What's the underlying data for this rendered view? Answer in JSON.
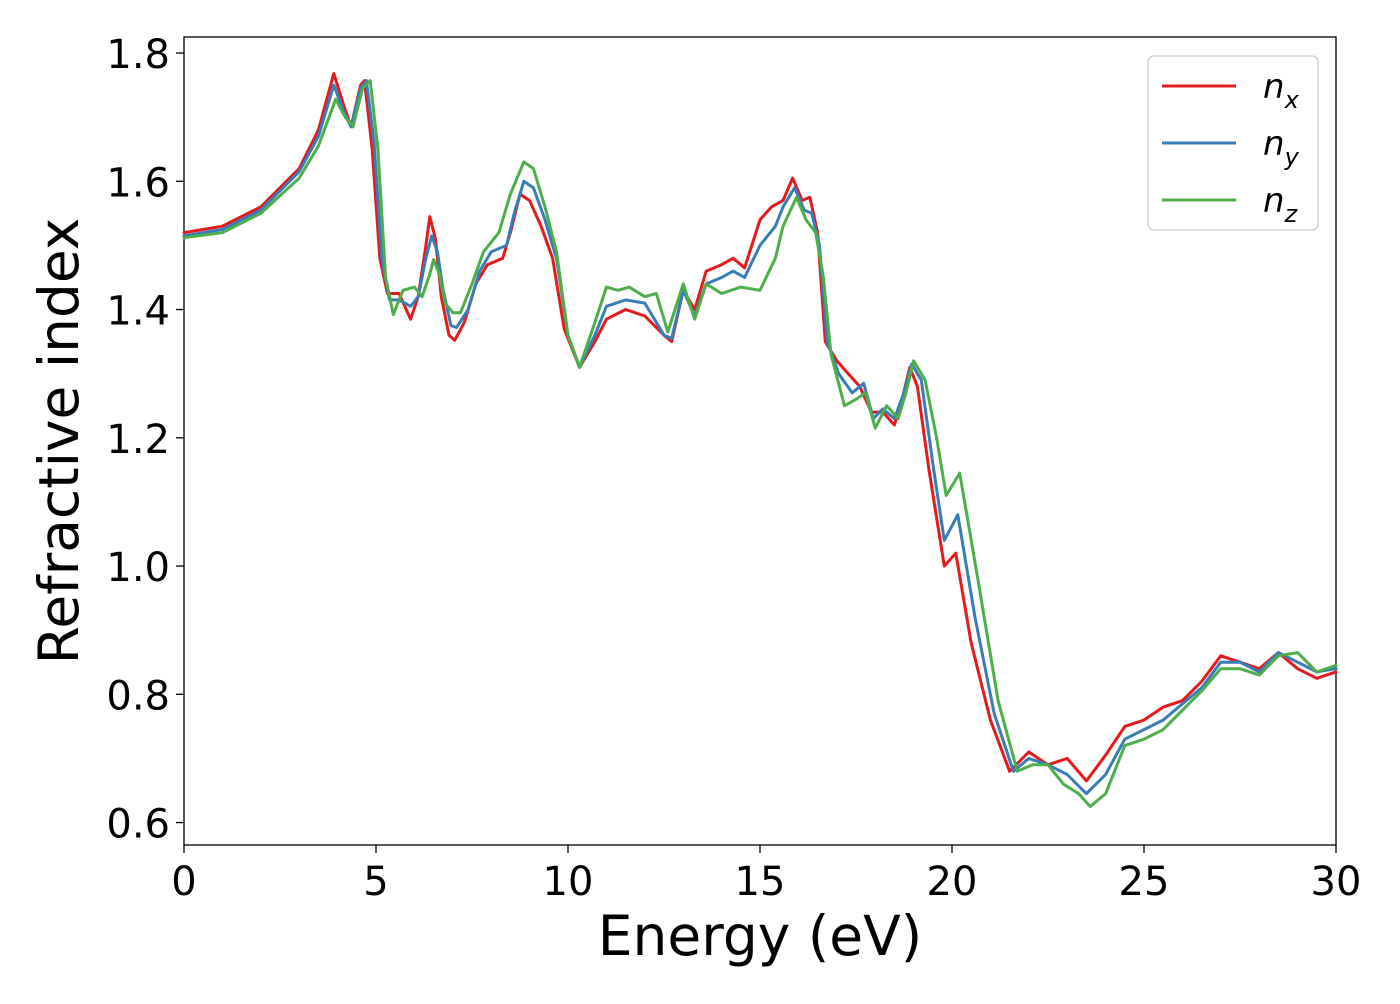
{
  "chart_data": {
    "type": "line",
    "title": "",
    "xlabel": "Energy (eV)",
    "ylabel": "Refractive index",
    "xlim": [
      0,
      30
    ],
    "ylim": [
      0.565,
      1.825
    ],
    "x_ticks": [
      0,
      5,
      10,
      15,
      20,
      25,
      30
    ],
    "x_tick_labels": [
      "0",
      "5",
      "10",
      "15",
      "20",
      "25",
      "30"
    ],
    "y_ticks": [
      0.6,
      0.8,
      1.0,
      1.2,
      1.4,
      1.6,
      1.8
    ],
    "y_tick_labels": [
      "0.6",
      "0.8",
      "1.0",
      "1.2",
      "1.4",
      "1.6",
      "1.8"
    ],
    "grid": false,
    "legend_position": "top-right",
    "series": [
      {
        "name": "n_x",
        "label_main": "n",
        "label_sub": "x",
        "color": "#e41a1c",
        "points": [
          [
            0,
            1.52
          ],
          [
            1,
            1.53
          ],
          [
            2,
            1.56
          ],
          [
            3,
            1.62
          ],
          [
            3.5,
            1.68
          ],
          [
            3.9,
            1.768
          ],
          [
            4.15,
            1.72
          ],
          [
            4.35,
            1.685
          ],
          [
            4.6,
            1.75
          ],
          [
            4.7,
            1.757
          ],
          [
            4.9,
            1.65
          ],
          [
            5.1,
            1.48
          ],
          [
            5.3,
            1.425
          ],
          [
            5.6,
            1.425
          ],
          [
            5.9,
            1.385
          ],
          [
            6.1,
            1.42
          ],
          [
            6.3,
            1.5
          ],
          [
            6.4,
            1.545
          ],
          [
            6.55,
            1.51
          ],
          [
            6.7,
            1.42
          ],
          [
            6.9,
            1.36
          ],
          [
            7.05,
            1.352
          ],
          [
            7.3,
            1.38
          ],
          [
            7.6,
            1.44
          ],
          [
            7.9,
            1.47
          ],
          [
            8.3,
            1.48
          ],
          [
            8.5,
            1.52
          ],
          [
            8.75,
            1.58
          ],
          [
            9.0,
            1.57
          ],
          [
            9.3,
            1.53
          ],
          [
            9.6,
            1.48
          ],
          [
            9.9,
            1.37
          ],
          [
            10.3,
            1.31
          ],
          [
            10.7,
            1.35
          ],
          [
            11,
            1.385
          ],
          [
            11.5,
            1.4
          ],
          [
            12,
            1.39
          ],
          [
            12.5,
            1.36
          ],
          [
            12.7,
            1.35
          ],
          [
            13,
            1.43
          ],
          [
            13.3,
            1.4
          ],
          [
            13.6,
            1.46
          ],
          [
            14,
            1.47
          ],
          [
            14.3,
            1.48
          ],
          [
            14.6,
            1.465
          ],
          [
            15,
            1.54
          ],
          [
            15.3,
            1.56
          ],
          [
            15.6,
            1.57
          ],
          [
            15.85,
            1.605
          ],
          [
            16.1,
            1.57
          ],
          [
            16.3,
            1.575
          ],
          [
            16.5,
            1.52
          ],
          [
            16.7,
            1.35
          ],
          [
            17,
            1.32
          ],
          [
            17.3,
            1.3
          ],
          [
            17.6,
            1.28
          ],
          [
            17.9,
            1.24
          ],
          [
            18.2,
            1.24
          ],
          [
            18.5,
            1.22
          ],
          [
            18.7,
            1.26
          ],
          [
            18.9,
            1.31
          ],
          [
            19.1,
            1.28
          ],
          [
            19.4,
            1.15
          ],
          [
            19.8,
            1.0
          ],
          [
            20.1,
            1.02
          ],
          [
            20.5,
            0.88
          ],
          [
            21,
            0.76
          ],
          [
            21.5,
            0.68
          ],
          [
            22,
            0.71
          ],
          [
            22.5,
            0.69
          ],
          [
            23,
            0.7
          ],
          [
            23.5,
            0.665
          ],
          [
            24,
            0.705
          ],
          [
            24.5,
            0.75
          ],
          [
            25,
            0.76
          ],
          [
            25.5,
            0.78
          ],
          [
            26,
            0.79
          ],
          [
            26.5,
            0.82
          ],
          [
            27,
            0.86
          ],
          [
            27.5,
            0.85
          ],
          [
            28,
            0.84
          ],
          [
            28.5,
            0.865
          ],
          [
            29,
            0.84
          ],
          [
            29.5,
            0.825
          ],
          [
            30,
            0.835
          ]
        ]
      },
      {
        "name": "n_y",
        "label_main": "n",
        "label_sub": "y",
        "color": "#377eb8",
        "points": [
          [
            0,
            1.515
          ],
          [
            1,
            1.525
          ],
          [
            2,
            1.555
          ],
          [
            3,
            1.615
          ],
          [
            3.5,
            1.67
          ],
          [
            3.9,
            1.75
          ],
          [
            4.15,
            1.71
          ],
          [
            4.35,
            1.685
          ],
          [
            4.6,
            1.745
          ],
          [
            4.75,
            1.757
          ],
          [
            4.95,
            1.66
          ],
          [
            5.15,
            1.48
          ],
          [
            5.35,
            1.415
          ],
          [
            5.6,
            1.415
          ],
          [
            5.9,
            1.405
          ],
          [
            6.1,
            1.42
          ],
          [
            6.3,
            1.48
          ],
          [
            6.45,
            1.515
          ],
          [
            6.6,
            1.49
          ],
          [
            6.75,
            1.43
          ],
          [
            6.95,
            1.375
          ],
          [
            7.1,
            1.372
          ],
          [
            7.4,
            1.4
          ],
          [
            7.7,
            1.46
          ],
          [
            8.0,
            1.49
          ],
          [
            8.4,
            1.5
          ],
          [
            8.6,
            1.55
          ],
          [
            8.85,
            1.6
          ],
          [
            9.1,
            1.59
          ],
          [
            9.4,
            1.54
          ],
          [
            9.7,
            1.48
          ],
          [
            10,
            1.36
          ],
          [
            10.3,
            1.31
          ],
          [
            10.7,
            1.36
          ],
          [
            11,
            1.405
          ],
          [
            11.5,
            1.415
          ],
          [
            12,
            1.41
          ],
          [
            12.5,
            1.36
          ],
          [
            12.7,
            1.355
          ],
          [
            13,
            1.43
          ],
          [
            13.3,
            1.39
          ],
          [
            13.6,
            1.44
          ],
          [
            14,
            1.45
          ],
          [
            14.3,
            1.46
          ],
          [
            14.6,
            1.45
          ],
          [
            15,
            1.5
          ],
          [
            15.4,
            1.53
          ],
          [
            15.6,
            1.56
          ],
          [
            15.9,
            1.59
          ],
          [
            16.15,
            1.555
          ],
          [
            16.35,
            1.55
          ],
          [
            16.55,
            1.5
          ],
          [
            16.75,
            1.35
          ],
          [
            17.05,
            1.3
          ],
          [
            17.4,
            1.27
          ],
          [
            17.7,
            1.285
          ],
          [
            17.95,
            1.23
          ],
          [
            18.2,
            1.245
          ],
          [
            18.5,
            1.23
          ],
          [
            18.75,
            1.27
          ],
          [
            18.95,
            1.315
          ],
          [
            19.2,
            1.29
          ],
          [
            19.5,
            1.16
          ],
          [
            19.8,
            1.04
          ],
          [
            20.15,
            1.08
          ],
          [
            20.6,
            0.92
          ],
          [
            21.1,
            0.77
          ],
          [
            21.6,
            0.68
          ],
          [
            22,
            0.7
          ],
          [
            22.5,
            0.69
          ],
          [
            23,
            0.675
          ],
          [
            23.5,
            0.645
          ],
          [
            24,
            0.675
          ],
          [
            24.5,
            0.73
          ],
          [
            25,
            0.745
          ],
          [
            25.5,
            0.76
          ],
          [
            26,
            0.785
          ],
          [
            26.5,
            0.81
          ],
          [
            27,
            0.85
          ],
          [
            27.5,
            0.85
          ],
          [
            28,
            0.835
          ],
          [
            28.5,
            0.865
          ],
          [
            29,
            0.85
          ],
          [
            29.5,
            0.835
          ],
          [
            30,
            0.84
          ]
        ]
      },
      {
        "name": "n_z",
        "label_main": "n",
        "label_sub": "z",
        "color": "#4daf4a",
        "points": [
          [
            0,
            1.512
          ],
          [
            1,
            1.52
          ],
          [
            2,
            1.55
          ],
          [
            3,
            1.605
          ],
          [
            3.5,
            1.655
          ],
          [
            3.95,
            1.728
          ],
          [
            4.2,
            1.7
          ],
          [
            4.4,
            1.685
          ],
          [
            4.65,
            1.745
          ],
          [
            4.85,
            1.757
          ],
          [
            5.05,
            1.65
          ],
          [
            5.25,
            1.45
          ],
          [
            5.45,
            1.392
          ],
          [
            5.7,
            1.43
          ],
          [
            6.0,
            1.435
          ],
          [
            6.2,
            1.42
          ],
          [
            6.4,
            1.455
          ],
          [
            6.5,
            1.478
          ],
          [
            6.65,
            1.455
          ],
          [
            6.8,
            1.41
          ],
          [
            7.0,
            1.395
          ],
          [
            7.2,
            1.395
          ],
          [
            7.5,
            1.44
          ],
          [
            7.8,
            1.49
          ],
          [
            8.2,
            1.52
          ],
          [
            8.5,
            1.58
          ],
          [
            8.85,
            1.63
          ],
          [
            9.1,
            1.62
          ],
          [
            9.4,
            1.56
          ],
          [
            9.7,
            1.49
          ],
          [
            10,
            1.36
          ],
          [
            10.3,
            1.31
          ],
          [
            10.7,
            1.38
          ],
          [
            11,
            1.435
          ],
          [
            11.3,
            1.43
          ],
          [
            11.6,
            1.435
          ],
          [
            12,
            1.42
          ],
          [
            12.3,
            1.425
          ],
          [
            12.6,
            1.365
          ],
          [
            13,
            1.44
          ],
          [
            13.3,
            1.385
          ],
          [
            13.6,
            1.44
          ],
          [
            14,
            1.425
          ],
          [
            14.5,
            1.435
          ],
          [
            15,
            1.43
          ],
          [
            15.4,
            1.48
          ],
          [
            15.6,
            1.53
          ],
          [
            15.95,
            1.575
          ],
          [
            16.2,
            1.54
          ],
          [
            16.45,
            1.52
          ],
          [
            16.65,
            1.45
          ],
          [
            16.85,
            1.33
          ],
          [
            17.2,
            1.25
          ],
          [
            17.5,
            1.26
          ],
          [
            17.75,
            1.27
          ],
          [
            18.0,
            1.215
          ],
          [
            18.3,
            1.25
          ],
          [
            18.6,
            1.23
          ],
          [
            18.8,
            1.27
          ],
          [
            19.0,
            1.32
          ],
          [
            19.3,
            1.29
          ],
          [
            19.6,
            1.2
          ],
          [
            19.85,
            1.11
          ],
          [
            20.2,
            1.145
          ],
          [
            20.7,
            0.97
          ],
          [
            21.2,
            0.79
          ],
          [
            21.7,
            0.68
          ],
          [
            22.1,
            0.69
          ],
          [
            22.5,
            0.69
          ],
          [
            22.9,
            0.66
          ],
          [
            23.3,
            0.645
          ],
          [
            23.6,
            0.625
          ],
          [
            24,
            0.645
          ],
          [
            24.5,
            0.72
          ],
          [
            25,
            0.73
          ],
          [
            25.5,
            0.745
          ],
          [
            26,
            0.775
          ],
          [
            26.5,
            0.805
          ],
          [
            27,
            0.84
          ],
          [
            27.5,
            0.84
          ],
          [
            28,
            0.83
          ],
          [
            28.5,
            0.86
          ],
          [
            29,
            0.865
          ],
          [
            29.5,
            0.835
          ],
          [
            30,
            0.845
          ]
        ]
      }
    ]
  }
}
